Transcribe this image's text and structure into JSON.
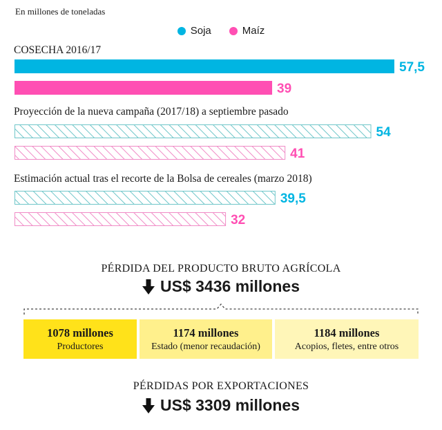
{
  "unit_label": "En millones de toneladas",
  "chart_data": {
    "type": "bar",
    "orientation": "horizontal",
    "title": "",
    "unit": "En millones de toneladas",
    "legend": {
      "placement": "top-center"
    },
    "series": [
      {
        "name": "Soja",
        "color": "#00b5e2"
      },
      {
        "name": "Maíz",
        "color": "#ff4fb3"
      }
    ],
    "groups": [
      {
        "title": "COSECHA 2016/17",
        "style": "solid",
        "values": [
          57.5,
          39
        ],
        "labels": [
          "57,5",
          "39"
        ]
      },
      {
        "title": "Proyección de la nueva campaña (2017/18) a septiembre pasado",
        "style": "hatched",
        "values": [
          54,
          41
        ],
        "labels": [
          "54",
          "41"
        ]
      },
      {
        "title": "Estimación actual tras el recorte de la Bolsa de cereales (marzo 2018)",
        "style": "hatched",
        "values": [
          39.5,
          32
        ],
        "labels": [
          "39,5",
          "32"
        ]
      }
    ],
    "xlim": [
      0,
      57.5
    ]
  },
  "agri_loss": {
    "title": "PÉRDIDA DEL PRODUCTO BRUTO AGRÍCOLA",
    "total": "US$ 3436 millones",
    "breakdown": [
      {
        "amount": "1078 millones",
        "label": "Productores",
        "color": "#ffe21a"
      },
      {
        "amount": "1174 millones",
        "label": "Estado (menor recaudación)",
        "color": "#fff08c"
      },
      {
        "amount": "1184 millones",
        "label": "Acopios, fletes, entre otros",
        "color": "#fff6b8"
      }
    ]
  },
  "export_loss": {
    "title": "PÉRDIDAS POR EXPORTACIONES",
    "total": "US$ 3309 millones"
  }
}
